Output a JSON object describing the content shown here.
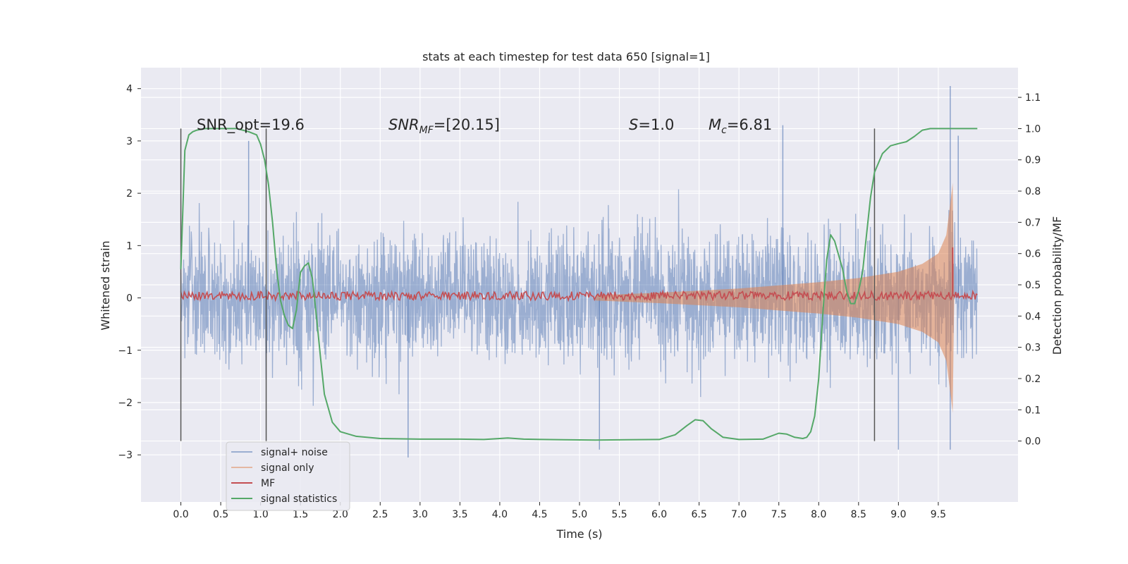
{
  "chart_data": {
    "type": "line",
    "title": "stats at each timestep for test data 650 [signal=1]",
    "xlabel": "Time (s)",
    "ylabel_left": "Whitened strain",
    "ylabel_right": "Detection probability/MF",
    "xlim": [
      -0.5,
      10.5
    ],
    "ylim_left": [
      -3.9,
      4.4
    ],
    "ylim_right": [
      -0.195,
      1.195
    ],
    "x_ticks": [
      "0.0",
      "0.5",
      "1.0",
      "1.5",
      "2.0",
      "2.5",
      "3.0",
      "3.5",
      "4.0",
      "4.5",
      "5.0",
      "5.5",
      "6.0",
      "6.5",
      "7.0",
      "7.5",
      "8.0",
      "8.5",
      "9.0",
      "9.5"
    ],
    "y_left_ticks": [
      "4",
      "3",
      "2",
      "1",
      "0",
      "−1",
      "−2",
      "−3"
    ],
    "y_right_ticks": [
      "1.1",
      "1.0",
      "0.9",
      "0.8",
      "0.7",
      "0.6",
      "0.5",
      "0.4",
      "0.3",
      "0.2",
      "0.1",
      "0.0"
    ],
    "grid": true,
    "legend_position": "lower-left",
    "annotations": {
      "snr_opt": "SNR_opt=19.6",
      "snr_mf_var": "SNR",
      "snr_mf_sub": "MF",
      "snr_mf_val": "=[20.15]",
      "s_var": "S",
      "s_val": "=1.0",
      "mc_var": "M",
      "mc_sub": "c",
      "mc_val": "=6.81"
    },
    "vertical_lines_x": [
      0.0,
      1.07,
      8.7
    ],
    "colors": {
      "background": "#eaeaf2",
      "grid": "#ffffff",
      "signal_noise": "#4c72b0",
      "signal_only": "#dd8452",
      "mf": "#c44e52",
      "signal_statistics": "#55a868",
      "vline": "#555555"
    },
    "series": [
      {
        "name": "signal+ noise",
        "axis": "left",
        "description_range": [
          -1.55,
          1.55
        ],
        "x_range": [
          0.0,
          9.99
        ],
        "peaks": [
          {
            "x": 9.65,
            "y": 4.05
          },
          {
            "x": 7.55,
            "y": 3.3
          },
          {
            "x": 9.75,
            "y": 3.1
          },
          {
            "x": 0.85,
            "y": 3.0
          },
          {
            "x": 2.85,
            "y": -3.05
          },
          {
            "x": 5.25,
            "y": -2.9
          },
          {
            "x": 9.65,
            "y": -2.9
          },
          {
            "x": 9.0,
            "y": -2.9
          }
        ]
      },
      {
        "name": "signal only",
        "axis": "left",
        "envelope": [
          {
            "x": 5.2,
            "y": 0.05
          },
          {
            "x": 6.0,
            "y": 0.1
          },
          {
            "x": 7.0,
            "y": 0.18
          },
          {
            "x": 8.0,
            "y": 0.3
          },
          {
            "x": 8.5,
            "y": 0.38
          },
          {
            "x": 9.0,
            "y": 0.5
          },
          {
            "x": 9.3,
            "y": 0.65
          },
          {
            "x": 9.5,
            "y": 0.85
          },
          {
            "x": 9.6,
            "y": 1.2
          },
          {
            "x": 9.65,
            "y": 1.8
          },
          {
            "x": 9.68,
            "y": 2.2
          },
          {
            "x": 9.7,
            "y": 0.0
          }
        ]
      },
      {
        "name": "MF",
        "axis": "right",
        "level": 0.465,
        "spike": {
          "x": 9.68,
          "y": 0.62
        }
      },
      {
        "name": "signal statistics",
        "axis": "right",
        "x": [
          0.0,
          0.05,
          0.1,
          0.15,
          0.2,
          0.3,
          0.5,
          0.7,
          0.85,
          0.95,
          1.0,
          1.05,
          1.1,
          1.15,
          1.2,
          1.25,
          1.3,
          1.35,
          1.4,
          1.45,
          1.5,
          1.55,
          1.6,
          1.65,
          1.7,
          1.75,
          1.8,
          1.9,
          2.0,
          2.2,
          2.5,
          3.0,
          3.5,
          3.8,
          4.0,
          4.1,
          4.3,
          4.8,
          5.2,
          5.6,
          6.0,
          6.2,
          6.35,
          6.45,
          6.55,
          6.65,
          6.8,
          7.0,
          7.3,
          7.5,
          7.6,
          7.7,
          7.8,
          7.85,
          7.9,
          7.95,
          8.0,
          8.05,
          8.1,
          8.15,
          8.2,
          8.3,
          8.35,
          8.4,
          8.45,
          8.5,
          8.55,
          8.6,
          8.65,
          8.7,
          8.8,
          8.9,
          9.0,
          9.1,
          9.2,
          9.3,
          9.4,
          9.6,
          9.8,
          9.99
        ],
        "y": [
          0.55,
          0.93,
          0.98,
          0.99,
          0.995,
          1.0,
          1.0,
          1.0,
          0.99,
          0.98,
          0.95,
          0.9,
          0.82,
          0.7,
          0.55,
          0.45,
          0.4,
          0.37,
          0.36,
          0.42,
          0.54,
          0.56,
          0.57,
          0.52,
          0.4,
          0.27,
          0.15,
          0.06,
          0.03,
          0.015,
          0.008,
          0.006,
          0.006,
          0.005,
          0.008,
          0.01,
          0.006,
          0.004,
          0.003,
          0.004,
          0.005,
          0.02,
          0.05,
          0.068,
          0.065,
          0.04,
          0.012,
          0.005,
          0.006,
          0.025,
          0.022,
          0.012,
          0.008,
          0.012,
          0.03,
          0.08,
          0.2,
          0.4,
          0.58,
          0.66,
          0.64,
          0.55,
          0.48,
          0.44,
          0.44,
          0.48,
          0.54,
          0.66,
          0.78,
          0.86,
          0.92,
          0.945,
          0.952,
          0.958,
          0.975,
          0.995,
          1.0,
          1.0,
          1.0,
          1.0
        ]
      }
    ]
  }
}
